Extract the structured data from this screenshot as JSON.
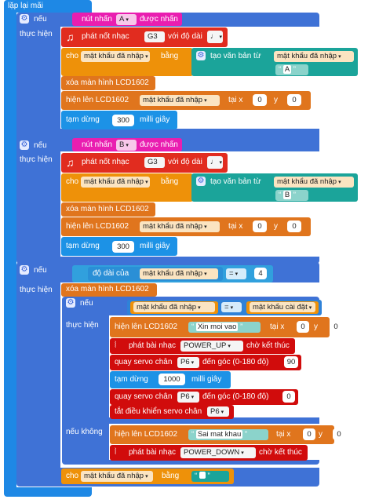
{
  "loop": {
    "label": "lặp lại mãi"
  },
  "common": {
    "if": "nếu",
    "then": "thực hiện",
    "else": "nếu không",
    "button": "nút nhấn",
    "pressed": "được nhấn",
    "play_note": "phát nốt nhạc",
    "duration": "với độ dài",
    "set": "cho",
    "var": "mật khẩu đã nhập",
    "equals": "bằng",
    "create_text": "tạo văn bản từ",
    "clear": "xóa màn hình LCD1602",
    "show": "hiện lên LCD1602",
    "at_x": "tại x",
    "y": "y",
    "pause": "tạm dừng",
    "ms": "milli giây",
    "length_of": "độ dài của",
    "eq_op": "=",
    "saved_pw": "mật khẩu cài đặt",
    "play_melody": "phát bài nhạc",
    "until_done": "chờ kết thúc",
    "servo": "quay servo chân",
    "to_angle": "đến góc (0-180 độ)",
    "servo_off": "tắt điều khiển servo chân",
    "pin": "P6"
  },
  "blocks": {
    "b1": {
      "button": "A",
      "note": "G3",
      "text": "A",
      "x": "0",
      "y": "0",
      "pause": "300"
    },
    "b2": {
      "button": "B",
      "note": "G3",
      "text": "B",
      "x": "0",
      "y": "0",
      "pause": "300"
    },
    "b3": {
      "length": "4",
      "welcome": "Xin moi vao",
      "x1": "0",
      "y1": "0",
      "melody_ok": "POWER_UP",
      "angle1": "90",
      "pause": "1000",
      "angle2": "0",
      "wrong": "Sai mat khau",
      "x2": "0",
      "y2": "0",
      "melody_bad": "POWER_DOWN"
    }
  },
  "icons": {
    "note": "music-note",
    "gear": "gear",
    "melody": "sound-wave"
  },
  "colors": {
    "loop": "#1e88e5",
    "if": "#3f72d6",
    "button": "#e91eb0",
    "music": "#e12c1f",
    "vars": "#ee9109",
    "lcd": "#e0751d",
    "text": "#1ba49a",
    "pause": "#1c92e6"
  }
}
